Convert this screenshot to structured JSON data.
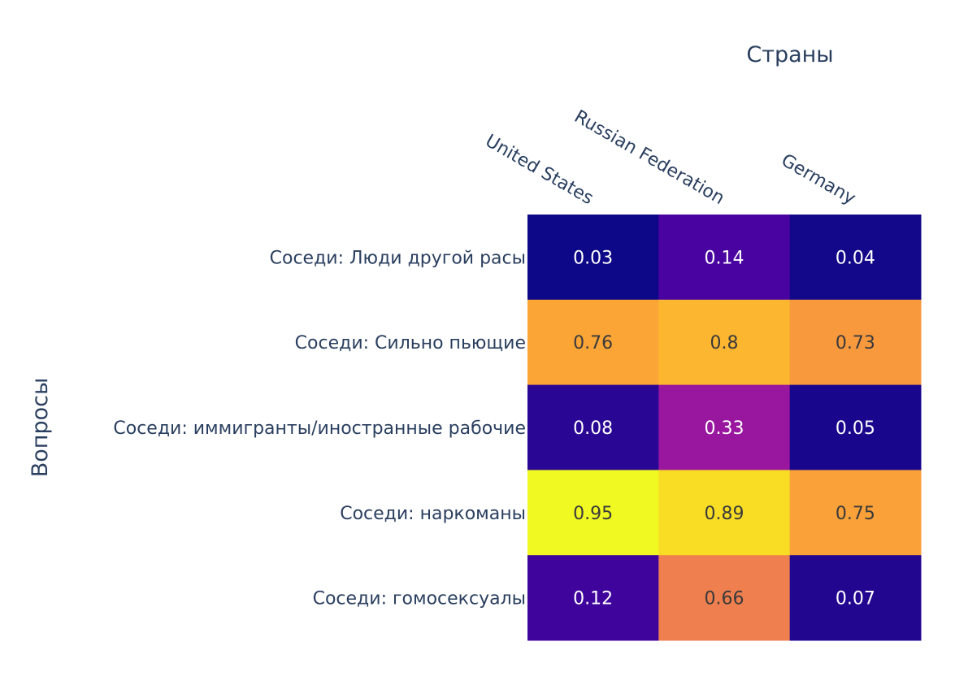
{
  "chart_data": {
    "type": "heatmap",
    "xlabel": "Страны",
    "ylabel": "Вопросы",
    "x_categories": [
      "United States",
      "Russian Federation",
      "Germany"
    ],
    "y_categories": [
      "Соседи: Люди другой расы",
      "Соседи: Сильно пьющие",
      "Соседи: иммигранты/иностранные рабочие",
      "Соседи: наркоманы",
      "Соседи: гомосексуалы"
    ],
    "values": [
      [
        0.03,
        0.14,
        0.04
      ],
      [
        0.76,
        0.8,
        0.73
      ],
      [
        0.08,
        0.33,
        0.05
      ],
      [
        0.95,
        0.89,
        0.75
      ],
      [
        0.12,
        0.66,
        0.07
      ]
    ],
    "colorscale": "plasma",
    "text_labels": [
      [
        "0.03",
        "0.14",
        "0.04"
      ],
      [
        "0.76",
        "0.8",
        "0.73"
      ],
      [
        "0.08",
        "0.33",
        "0.05"
      ],
      [
        "0.95",
        "0.89",
        "0.75"
      ],
      [
        "0.12",
        "0.66",
        "0.07"
      ]
    ],
    "x_axis_side": "top",
    "grid": false,
    "colorbar": false
  }
}
